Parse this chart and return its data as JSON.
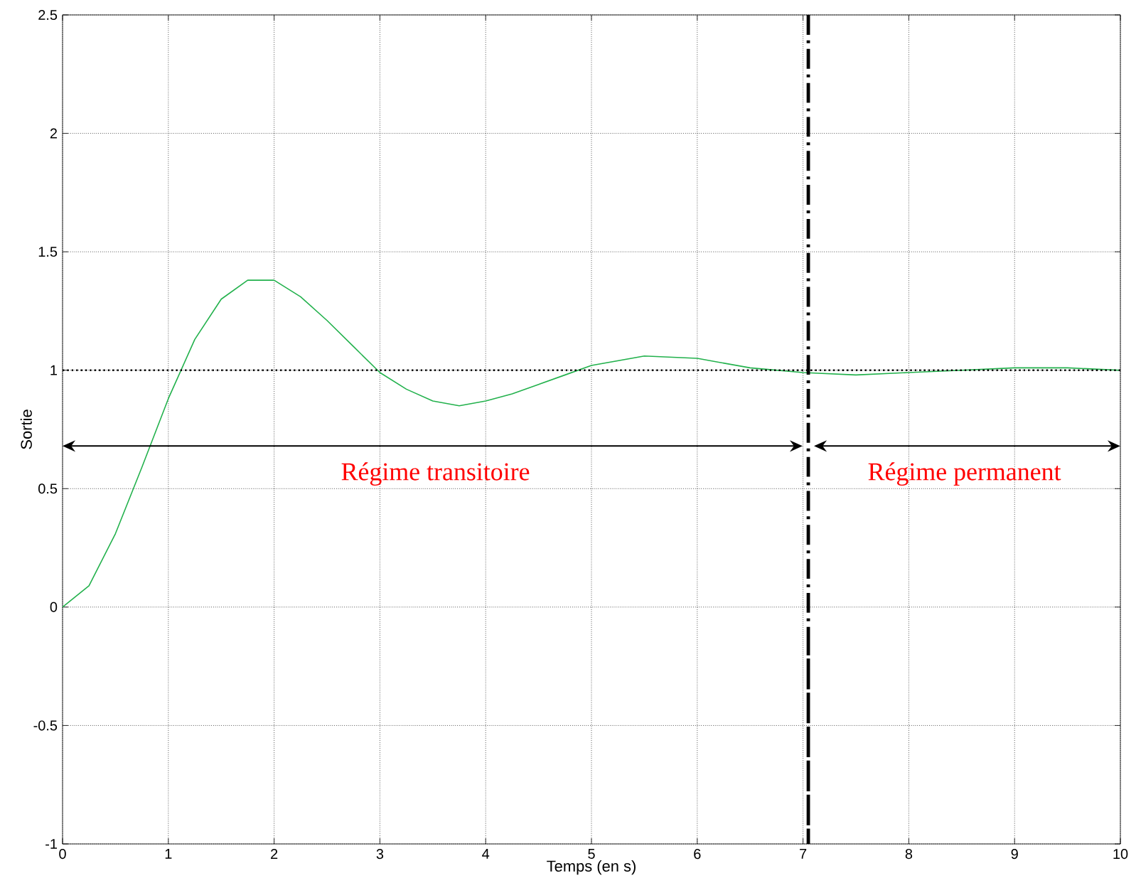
{
  "chart_data": {
    "type": "line",
    "xlabel": "Temps (en s)",
    "ylabel": "Sortie",
    "x": [
      0,
      0.25,
      0.5,
      0.75,
      1,
      1.25,
      1.5,
      1.75,
      2,
      2.25,
      2.5,
      2.75,
      3,
      3.25,
      3.5,
      3.75,
      4,
      4.25,
      4.5,
      4.75,
      5,
      5.5,
      6,
      6.5,
      7,
      7.5,
      8,
      8.5,
      9,
      9.5,
      10
    ],
    "series": [
      {
        "color": "#22b14c",
        "values": [
          0,
          0.09,
          0.31,
          0.59,
          0.88,
          1.13,
          1.3,
          1.38,
          1.38,
          1.31,
          1.21,
          1.1,
          0.99,
          0.92,
          0.87,
          0.85,
          0.87,
          0.9,
          0.94,
          0.98,
          1.02,
          1.06,
          1.05,
          1.01,
          0.99,
          0.98,
          0.99,
          1.0,
          1.01,
          1.01,
          1.0
        ]
      }
    ],
    "xlim": [
      0,
      10
    ],
    "ylim": [
      -1,
      2.5
    ],
    "xticks": [
      0,
      1,
      2,
      3,
      4,
      5,
      6,
      7,
      8,
      9,
      10
    ],
    "yticks": [
      -1,
      -0.5,
      0,
      0.5,
      1,
      1.5,
      2,
      2.5
    ],
    "grid": true,
    "line_style": "solid",
    "marker": "none",
    "ref_lines": [
      {
        "axis": "y",
        "value": 1,
        "color": "#000000",
        "line_style": "dotted"
      },
      {
        "axis": "x",
        "value": 7.05,
        "color": "#000000",
        "line_style": "dashdot"
      }
    ],
    "annotations": [
      "Régime transitoire",
      "Régime permanent"
    ]
  }
}
